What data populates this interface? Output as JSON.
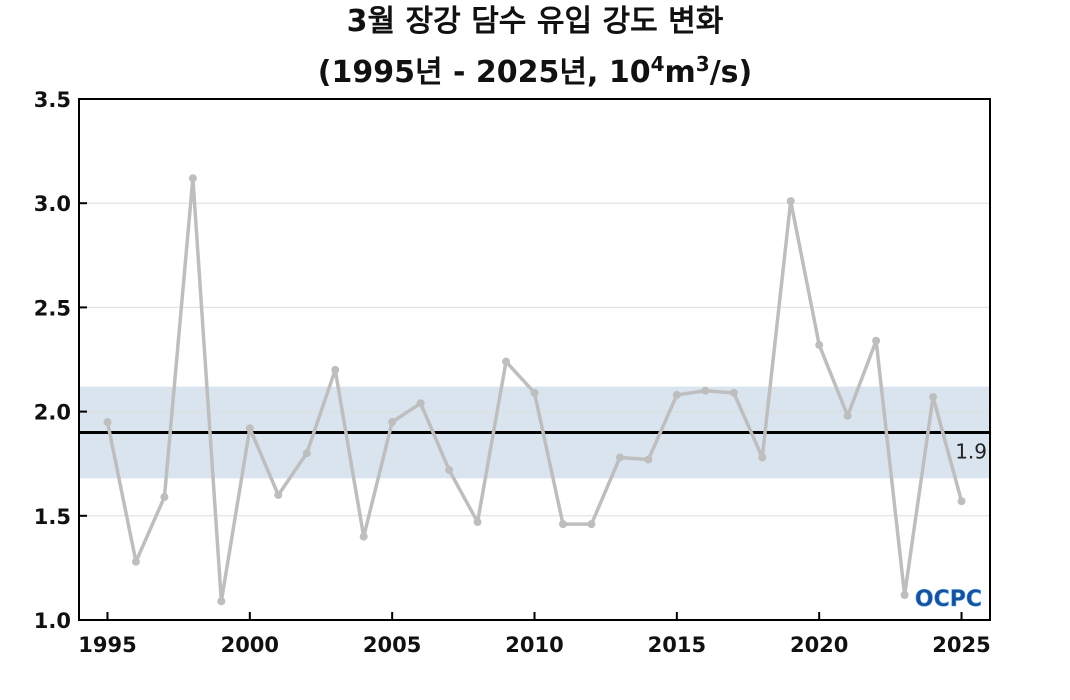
{
  "title_line1": "3월 장강 담수 유입 강도 변화",
  "title_line2_prefix": "(1995년 - 2025년, 10",
  "title_line2_sup1": "4",
  "title_line2_mid": "m",
  "title_line2_sup2": "3",
  "title_line2_suffix": "/s)",
  "logo_text": "OCPC",
  "colors": {
    "series": "#bebebe",
    "mean_line": "#000000",
    "band": "#d9e4ef",
    "grid": "#dddddd",
    "logo_blue": "#1a4f9c",
    "logo_light": "#4aa3df"
  },
  "chart_data": {
    "type": "line",
    "x": [
      1995,
      1996,
      1997,
      1998,
      1999,
      2000,
      2001,
      2002,
      2003,
      2004,
      2005,
      2006,
      2007,
      2008,
      2009,
      2010,
      2011,
      2012,
      2013,
      2014,
      2015,
      2016,
      2017,
      2018,
      2019,
      2020,
      2021,
      2022,
      2023,
      2024,
      2025
    ],
    "series": [
      {
        "values": [
          1.95,
          1.28,
          1.59,
          3.12,
          1.09,
          1.92,
          1.6,
          1.8,
          2.2,
          1.4,
          1.95,
          2.04,
          1.72,
          1.47,
          2.24,
          2.09,
          1.46,
          1.46,
          1.78,
          1.77,
          2.08,
          2.1,
          2.09,
          1.78,
          3.01,
          2.32,
          1.98,
          2.34,
          1.12,
          2.07,
          1.57
        ]
      }
    ],
    "mean": 1.9,
    "mean_label": "1.9",
    "band": [
      1.68,
      2.12
    ],
    "xlim": [
      1994,
      2026
    ],
    "ylim": [
      1.0,
      3.5
    ],
    "xticks": [
      1995,
      2000,
      2005,
      2010,
      2015,
      2020,
      2025
    ],
    "yticks": [
      1.0,
      1.5,
      2.0,
      2.5,
      3.0,
      3.5
    ],
    "ytick_labels": [
      "1.0",
      "1.5",
      "2.0",
      "2.5",
      "3.0",
      "3.5"
    ],
    "grid": true,
    "xlabel": "",
    "ylabel": ""
  }
}
